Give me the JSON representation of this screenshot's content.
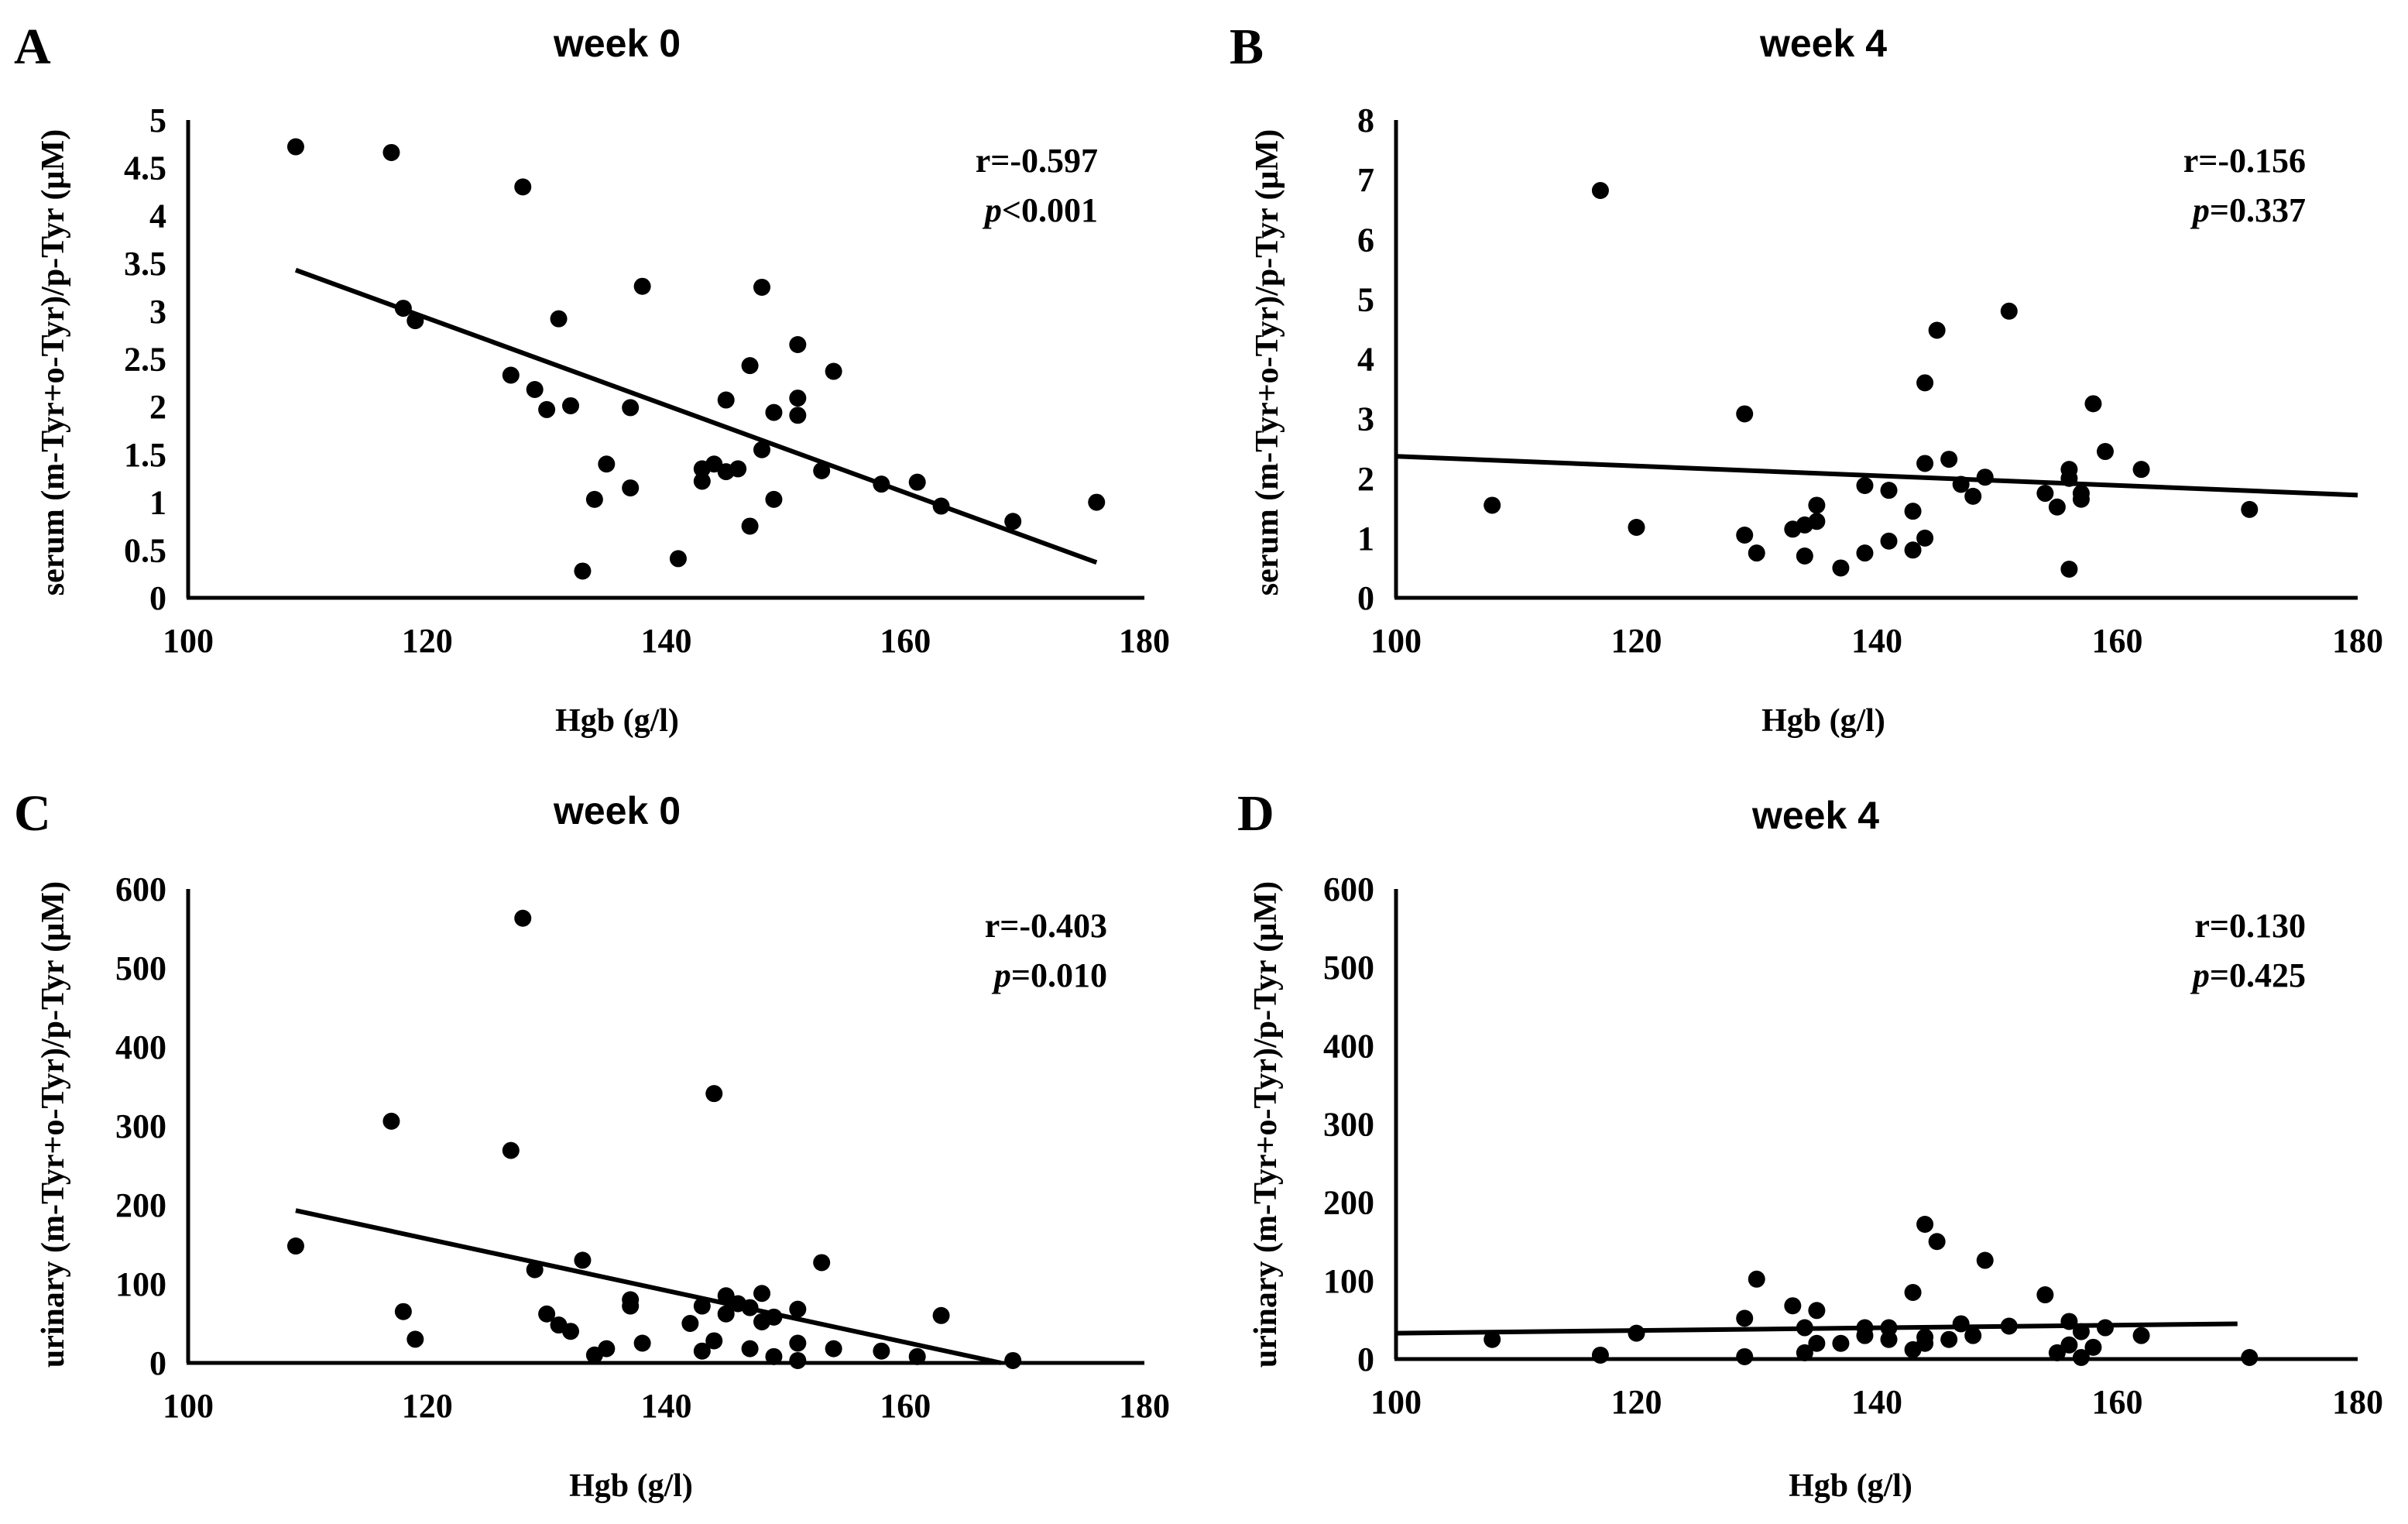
{
  "figure": {
    "panels": [
      {
        "letter": "A",
        "stat_r": "r=-0.597",
        "stat_p_symbol": "p",
        "stat_p_rest": "<0.001"
      },
      {
        "letter": "B",
        "stat_r": "r=-0.156",
        "stat_p_symbol": "p",
        "stat_p_rest": "=0.337"
      },
      {
        "letter": "C",
        "stat_r": "r=-0.403",
        "stat_p_symbol": "p",
        "stat_p_rest": "=0.010"
      },
      {
        "letter": "D",
        "stat_r": "r=0.130",
        "stat_p_symbol": "p",
        "stat_p_rest": "=0.425"
      }
    ]
  },
  "chart_data": [
    {
      "type": "scatter",
      "title": "week 0",
      "xlabel": "Hgb (g/l)",
      "ylabel": "serum (m-Tyr+o-Tyr)/p-Tyr  (µM)",
      "xlim": [
        100,
        180
      ],
      "ylim": [
        0,
        5
      ],
      "xticks": [
        "100",
        "120",
        "140",
        "160",
        "180"
      ],
      "yticks": [
        "0",
        "0.5",
        "1",
        "1.5",
        "2",
        "2.5",
        "3",
        "3.5",
        "4",
        "4.5",
        "5"
      ],
      "xtick_values": [
        100,
        120,
        140,
        160,
        180
      ],
      "ytick_values": [
        0,
        0.5,
        1,
        1.5,
        2,
        2.5,
        3,
        3.5,
        4,
        4.5,
        5
      ],
      "points": [
        [
          109,
          4.72
        ],
        [
          117,
          4.66
        ],
        [
          118,
          3.03
        ],
        [
          119,
          2.9
        ],
        [
          127,
          2.33
        ],
        [
          128,
          4.3
        ],
        [
          129,
          2.18
        ],
        [
          130,
          1.97
        ],
        [
          131,
          2.92
        ],
        [
          132,
          2.01
        ],
        [
          133,
          0.28
        ],
        [
          134,
          1.03
        ],
        [
          135,
          1.4
        ],
        [
          137,
          1.15
        ],
        [
          137,
          1.99
        ],
        [
          138,
          3.26
        ],
        [
          141,
          0.41
        ],
        [
          143,
          1.22
        ],
        [
          143,
          1.35
        ],
        [
          144,
          1.4
        ],
        [
          145,
          2.07
        ],
        [
          145,
          1.32
        ],
        [
          146,
          1.35
        ],
        [
          147,
          2.43
        ],
        [
          147,
          0.75
        ],
        [
          148,
          3.25
        ],
        [
          148,
          1.55
        ],
        [
          149,
          1.03
        ],
        [
          149,
          1.94
        ],
        [
          151,
          2.65
        ],
        [
          151,
          2.09
        ],
        [
          151,
          1.91
        ],
        [
          153,
          1.33
        ],
        [
          154,
          2.37
        ],
        [
          158,
          1.19
        ],
        [
          161,
          1.21
        ],
        [
          163,
          0.96
        ],
        [
          169,
          0.8
        ],
        [
          176,
          1.0
        ]
      ],
      "trendline": {
        "x": [
          109,
          176
        ],
        "y": [
          3.43,
          0.37
        ]
      }
    },
    {
      "type": "scatter",
      "title": "week 4",
      "xlabel": "Hgb (g/l)",
      "ylabel": "serum (m-Tyr+o-Tyr)/p-Tyr  (µM)",
      "xlim": [
        100,
        180
      ],
      "ylim": [
        0,
        8
      ],
      "xticks": [
        "100",
        "120",
        "140",
        "160",
        "180"
      ],
      "yticks": [
        "0",
        "1",
        "2",
        "3",
        "4",
        "5",
        "6",
        "7",
        "8"
      ],
      "xtick_values": [
        100,
        120,
        140,
        160,
        180
      ],
      "ytick_values": [
        0,
        1,
        2,
        3,
        4,
        5,
        6,
        7,
        8
      ],
      "points": [
        [
          108,
          1.55
        ],
        [
          117,
          6.82
        ],
        [
          120,
          1.18
        ],
        [
          129,
          1.05
        ],
        [
          129,
          3.08
        ],
        [
          130,
          0.75
        ],
        [
          133,
          1.15
        ],
        [
          134,
          0.7
        ],
        [
          134,
          1.22
        ],
        [
          135,
          1.28
        ],
        [
          135,
          1.55
        ],
        [
          137,
          0.5
        ],
        [
          139,
          0.75
        ],
        [
          139,
          1.88
        ],
        [
          141,
          0.95
        ],
        [
          141,
          1.8
        ],
        [
          143,
          0.8
        ],
        [
          143,
          1.45
        ],
        [
          144,
          1.0
        ],
        [
          144,
          2.25
        ],
        [
          144,
          3.6
        ],
        [
          145,
          4.48
        ],
        [
          146,
          2.32
        ],
        [
          147,
          1.9
        ],
        [
          148,
          1.7
        ],
        [
          149,
          2.02
        ],
        [
          151,
          4.8
        ],
        [
          154,
          1.75
        ],
        [
          155,
          1.52
        ],
        [
          156,
          2.15
        ],
        [
          156,
          2.0
        ],
        [
          156,
          0.48
        ],
        [
          157,
          1.65
        ],
        [
          157,
          1.75
        ],
        [
          158,
          3.25
        ],
        [
          159,
          2.45
        ],
        [
          162,
          2.15
        ],
        [
          171,
          1.48
        ]
      ],
      "trendline": {
        "x": [
          100,
          180
        ],
        "y": [
          2.37,
          1.72
        ]
      }
    },
    {
      "type": "scatter",
      "title": "week 0",
      "xlabel": "Hgb (g/l)",
      "ylabel": "urinary (m-Tyr+o-Tyr)/p-Tyr  (µM)",
      "xlim": [
        100,
        180
      ],
      "ylim": [
        0,
        600
      ],
      "xticks": [
        "100",
        "120",
        "140",
        "160",
        "180"
      ],
      "yticks": [
        "0",
        "100",
        "200",
        "300",
        "400",
        "500",
        "600"
      ],
      "xtick_values": [
        100,
        120,
        140,
        160,
        180
      ],
      "ytick_values": [
        0,
        100,
        200,
        300,
        400,
        500,
        600
      ],
      "points": [
        [
          109,
          148
        ],
        [
          117,
          306
        ],
        [
          118,
          65
        ],
        [
          119,
          30
        ],
        [
          127,
          269
        ],
        [
          128,
          563
        ],
        [
          129,
          118
        ],
        [
          130,
          62
        ],
        [
          131,
          48
        ],
        [
          132,
          40
        ],
        [
          133,
          130
        ],
        [
          134,
          10
        ],
        [
          135,
          18
        ],
        [
          137,
          72
        ],
        [
          137,
          80
        ],
        [
          138,
          25
        ],
        [
          142,
          50
        ],
        [
          143,
          15
        ],
        [
          143,
          72
        ],
        [
          144,
          341
        ],
        [
          144,
          28
        ],
        [
          145,
          85
        ],
        [
          145,
          62
        ],
        [
          146,
          75
        ],
        [
          147,
          70
        ],
        [
          147,
          18
        ],
        [
          148,
          52
        ],
        [
          148,
          88
        ],
        [
          149,
          58
        ],
        [
          149,
          8
        ],
        [
          151,
          68
        ],
        [
          151,
          25
        ],
        [
          151,
          3
        ],
        [
          153,
          127
        ],
        [
          154,
          18
        ],
        [
          158,
          15
        ],
        [
          161,
          8
        ],
        [
          163,
          60
        ],
        [
          169,
          3
        ]
      ],
      "trendline": {
        "x": [
          109,
          168
        ],
        "y": [
          193,
          0
        ]
      }
    },
    {
      "type": "scatter",
      "title": "week 4",
      "xlabel": "Hgb (g/l)",
      "ylabel": "urinary (m-Tyr+o-Tyr)/p-Tyr  (µM)",
      "xlim": [
        100,
        180
      ],
      "ylim": [
        0,
        600
      ],
      "xticks": [
        "100",
        "120",
        "140",
        "160",
        "180"
      ],
      "yticks": [
        "0",
        "100",
        "200",
        "300",
        "400",
        "500",
        "600"
      ],
      "xtick_values": [
        100,
        120,
        140,
        160,
        180
      ],
      "ytick_values": [
        0,
        100,
        200,
        300,
        400,
        500,
        600
      ],
      "points": [
        [
          108,
          25
        ],
        [
          117,
          5
        ],
        [
          120,
          33
        ],
        [
          129,
          52
        ],
        [
          129,
          3
        ],
        [
          130,
          102
        ],
        [
          133,
          68
        ],
        [
          134,
          40
        ],
        [
          134,
          8
        ],
        [
          135,
          62
        ],
        [
          135,
          20
        ],
        [
          137,
          20
        ],
        [
          139,
          40
        ],
        [
          139,
          30
        ],
        [
          141,
          40
        ],
        [
          141,
          25
        ],
        [
          143,
          85
        ],
        [
          143,
          12
        ],
        [
          144,
          172
        ],
        [
          144,
          28
        ],
        [
          144,
          20
        ],
        [
          145,
          150
        ],
        [
          146,
          25
        ],
        [
          147,
          45
        ],
        [
          148,
          30
        ],
        [
          149,
          126
        ],
        [
          151,
          42
        ],
        [
          154,
          82
        ],
        [
          155,
          8
        ],
        [
          156,
          48
        ],
        [
          156,
          18
        ],
        [
          157,
          35
        ],
        [
          157,
          2
        ],
        [
          158,
          15
        ],
        [
          159,
          40
        ],
        [
          162,
          30
        ],
        [
          171,
          2
        ]
      ],
      "trendline": {
        "x": [
          100,
          170
        ],
        "y": [
          33,
          45
        ]
      }
    }
  ]
}
